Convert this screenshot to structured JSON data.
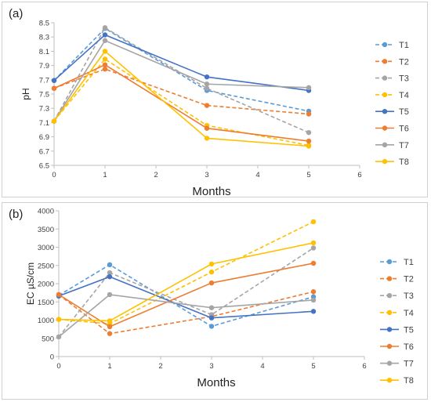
{
  "chart_data": [
    {
      "type": "line",
      "panel_label": "(a)",
      "title": "",
      "xlabel": "Months",
      "ylabel": "pH",
      "xlim": [
        0,
        6
      ],
      "ylim": [
        6.5,
        8.5
      ],
      "xticks": [
        0,
        1,
        2,
        3,
        4,
        5,
        6
      ],
      "yticks": [
        "6.5",
        "6.7",
        "6.9",
        "7.1",
        "7.3",
        "7.5",
        "7.7",
        "7.9",
        "8.1",
        "8.3",
        "8.5"
      ],
      "legend_position": "right",
      "grid": false,
      "series": [
        {
          "name": "T1",
          "color": "#5B9BD5",
          "dashed": true,
          "x": [
            0,
            1,
            3,
            5
          ],
          "y": [
            7.69,
            8.42,
            7.55,
            7.26
          ]
        },
        {
          "name": "T2",
          "color": "#ED7D31",
          "dashed": true,
          "x": [
            0,
            1,
            3,
            5
          ],
          "y": [
            7.58,
            7.85,
            7.34,
            7.22
          ]
        },
        {
          "name": "T3",
          "color": "#A5A5A5",
          "dashed": true,
          "x": [
            0,
            1,
            3,
            5
          ],
          "y": [
            7.12,
            8.43,
            7.58,
            6.96
          ]
        },
        {
          "name": "T4",
          "color": "#FFC000",
          "dashed": true,
          "x": [
            0,
            1,
            3,
            5
          ],
          "y": [
            7.12,
            7.99,
            7.06,
            6.78
          ]
        },
        {
          "name": "T5",
          "color": "#4472C4",
          "dashed": false,
          "x": [
            0,
            1,
            3,
            5
          ],
          "y": [
            7.69,
            8.33,
            7.74,
            7.55
          ]
        },
        {
          "name": "T6",
          "color": "#ED7D31",
          "dashed": false,
          "x": [
            0,
            1,
            3,
            5
          ],
          "y": [
            7.58,
            7.91,
            7.02,
            6.84
          ]
        },
        {
          "name": "T7",
          "color": "#A5A5A5",
          "dashed": false,
          "x": [
            0,
            1,
            3,
            5
          ],
          "y": [
            7.12,
            8.25,
            7.64,
            7.59
          ]
        },
        {
          "name": "T8",
          "color": "#FFC000",
          "dashed": false,
          "x": [
            0,
            1,
            3,
            5
          ],
          "y": [
            7.12,
            8.1,
            6.88,
            6.77
          ]
        }
      ]
    },
    {
      "type": "line",
      "panel_label": "(b)",
      "title": "",
      "xlabel": "Months",
      "ylabel": "EC  µS/cm",
      "xlim": [
        0,
        6
      ],
      "ylim": [
        0,
        4000
      ],
      "xticks": [
        0,
        1,
        2,
        3,
        4,
        5,
        6
      ],
      "yticks": [
        "0",
        "500",
        "1000",
        "1500",
        "2000",
        "2500",
        "3000",
        "3500",
        "4000"
      ],
      "legend_position": "right",
      "grid": false,
      "series": [
        {
          "name": "T1",
          "color": "#5B9BD5",
          "dashed": true,
          "x": [
            0,
            1,
            3,
            5
          ],
          "y": [
            1680,
            2520,
            830,
            1640
          ]
        },
        {
          "name": "T2",
          "color": "#ED7D31",
          "dashed": true,
          "x": [
            0,
            1,
            3,
            5
          ],
          "y": [
            1700,
            630,
            1100,
            1780
          ]
        },
        {
          "name": "T3",
          "color": "#A5A5A5",
          "dashed": true,
          "x": [
            0,
            1,
            3,
            5
          ],
          "y": [
            540,
            2300,
            1150,
            2980
          ]
        },
        {
          "name": "T4",
          "color": "#FFC000",
          "dashed": true,
          "x": [
            0,
            1,
            3,
            5
          ],
          "y": [
            1020,
            900,
            2320,
            3700
          ]
        },
        {
          "name": "T5",
          "color": "#4472C4",
          "dashed": false,
          "x": [
            0,
            1,
            3,
            5
          ],
          "y": [
            1660,
            2190,
            1060,
            1240
          ]
        },
        {
          "name": "T6",
          "color": "#ED7D31",
          "dashed": false,
          "x": [
            0,
            1,
            3,
            5
          ],
          "y": [
            1700,
            820,
            2020,
            2560
          ]
        },
        {
          "name": "T7",
          "color": "#A5A5A5",
          "dashed": false,
          "x": [
            0,
            1,
            3,
            5
          ],
          "y": [
            540,
            1700,
            1340,
            1550
          ]
        },
        {
          "name": "T8",
          "color": "#FFC000",
          "dashed": false,
          "x": [
            0,
            1,
            3,
            5
          ],
          "y": [
            1020,
            980,
            2540,
            3120
          ]
        }
      ]
    }
  ]
}
